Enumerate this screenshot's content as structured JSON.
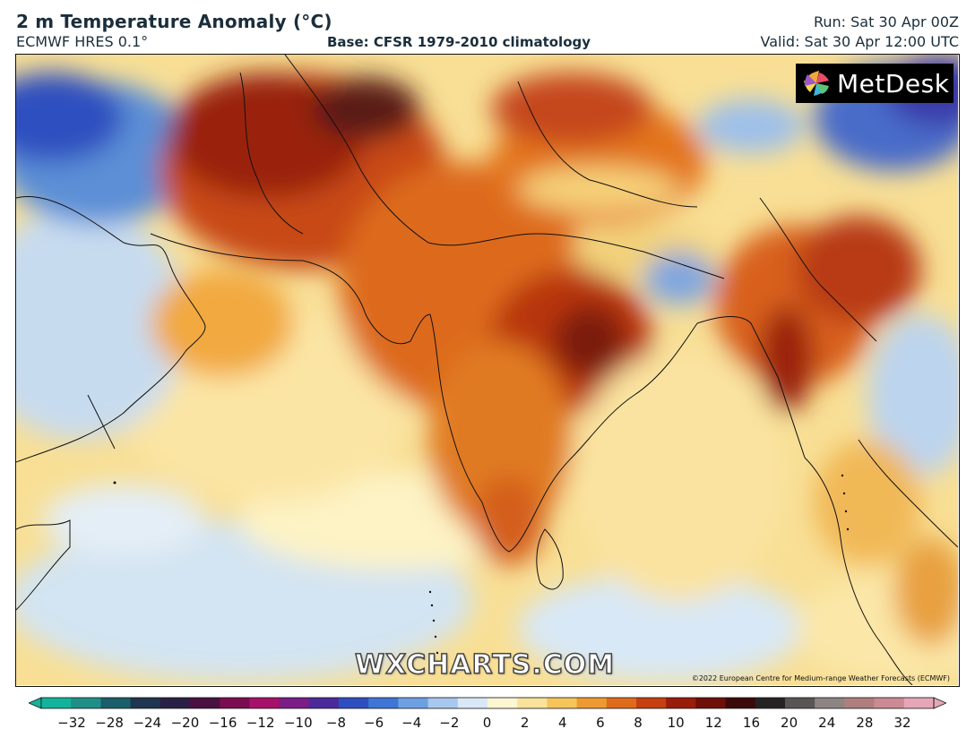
{
  "header": {
    "title": "2 m Temperature Anomaly (°C)",
    "model": "ECMWF HRES 0.1°",
    "base": "Base: CFSR 1979-2010 climatology",
    "run": "Run: Sat 30 Apr 00Z",
    "valid": "Valid: Sat 30 Apr 12:00 UTC"
  },
  "branding": {
    "logo_text": "MetDesk",
    "logo_icon": "metdesk-pinwheel-icon",
    "watermark": "WXCHARTS.COM",
    "copyright": "©2022 European Centre for Medium-range Weather Forecasts (ECMWF)"
  },
  "colorbar": {
    "ticks": [
      "−32",
      "−28",
      "−24",
      "−20",
      "−16",
      "−12",
      "−10",
      "−8",
      "−6",
      "−4",
      "−2",
      "0",
      "2",
      "4",
      "6",
      "8",
      "10",
      "12",
      "16",
      "20",
      "24",
      "28",
      "32"
    ],
    "colors": [
      "#12b39a",
      "#1f8f86",
      "#1b5f6b",
      "#1f3550",
      "#2a2045",
      "#4a1040",
      "#7a0d4f",
      "#a6126a",
      "#7b1d86",
      "#4b2a9a",
      "#2f4fc0",
      "#3f76d6",
      "#6da0e3",
      "#a7c7ee",
      "#d8e8f6",
      "#fdf6d2",
      "#f9e39a",
      "#f5c55a",
      "#ee9a32",
      "#e06a1c",
      "#c63f10",
      "#9a1c0a",
      "#6e0f0a",
      "#3c0a0a",
      "#262323",
      "#5a5555",
      "#8c8583",
      "#b07f7d",
      "#cc8a95",
      "#e6a6b8"
    ]
  },
  "map": {
    "region": "South Asia / Indian Ocean",
    "labels": []
  }
}
